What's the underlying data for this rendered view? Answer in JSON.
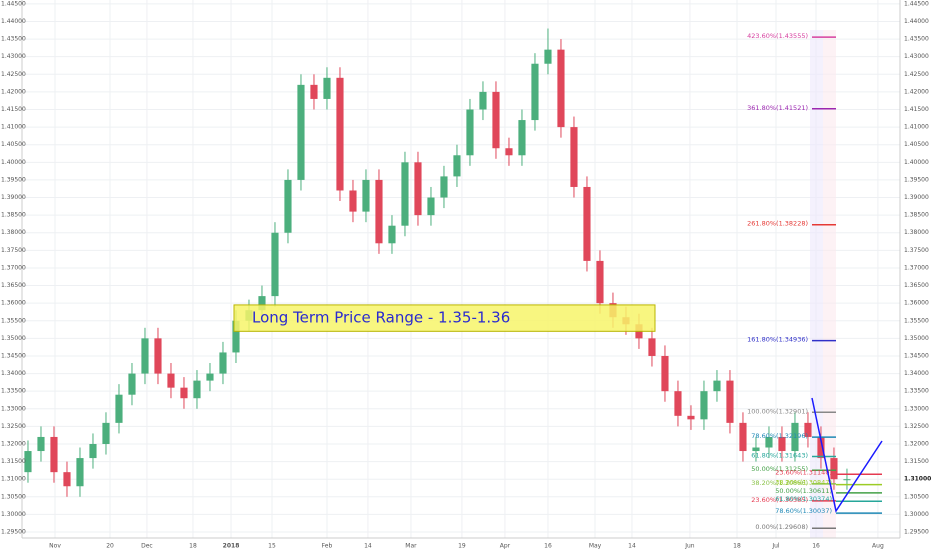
{
  "chart_data": {
    "type": "candlestick",
    "open": [
      1.312,
      1.318,
      1.322,
      1.312,
      1.308,
      1.316,
      1.32,
      1.326,
      1.334,
      1.34,
      1.35,
      1.34,
      1.336,
      1.333,
      1.338,
      1.34,
      1.346,
      1.355,
      1.358,
      1.362,
      1.38,
      1.395,
      1.422,
      1.418,
      1.424,
      1.392,
      1.386,
      1.395,
      1.377,
      1.382,
      1.4,
      1.385,
      1.39,
      1.396,
      1.402,
      1.415,
      1.42,
      1.404,
      1.402,
      1.412,
      1.428,
      1.432,
      1.41,
      1.393,
      1.372,
      1.36,
      1.356,
      1.354,
      1.35,
      1.345,
      1.335,
      1.328,
      1.327,
      1.335,
      1.338,
      1.326,
      1.318,
      1.319,
      1.322,
      1.318,
      1.326,
      1.322,
      1.316,
      1.31
    ],
    "high": [
      1.321,
      1.325,
      1.325,
      1.315,
      1.319,
      1.323,
      1.329,
      1.337,
      1.343,
      1.353,
      1.353,
      1.343,
      1.339,
      1.341,
      1.343,
      1.349,
      1.358,
      1.361,
      1.365,
      1.383,
      1.398,
      1.425,
      1.425,
      1.427,
      1.427,
      1.395,
      1.398,
      1.398,
      1.385,
      1.403,
      1.403,
      1.393,
      1.399,
      1.405,
      1.418,
      1.423,
      1.423,
      1.407,
      1.415,
      1.431,
      1.438,
      1.435,
      1.413,
      1.396,
      1.375,
      1.363,
      1.359,
      1.357,
      1.353,
      1.348,
      1.338,
      1.331,
      1.338,
      1.341,
      1.341,
      1.329,
      1.322,
      1.325,
      1.325,
      1.329,
      1.329,
      1.325,
      1.319,
      1.313
    ],
    "low": [
      1.309,
      1.315,
      1.309,
      1.305,
      1.305,
      1.313,
      1.317,
      1.323,
      1.331,
      1.337,
      1.337,
      1.333,
      1.33,
      1.33,
      1.335,
      1.337,
      1.343,
      1.352,
      1.355,
      1.359,
      1.377,
      1.392,
      1.415,
      1.415,
      1.389,
      1.383,
      1.383,
      1.374,
      1.374,
      1.379,
      1.382,
      1.382,
      1.387,
      1.393,
      1.399,
      1.412,
      1.401,
      1.399,
      1.399,
      1.409,
      1.425,
      1.407,
      1.39,
      1.369,
      1.357,
      1.353,
      1.351,
      1.347,
      1.342,
      1.332,
      1.325,
      1.324,
      1.324,
      1.332,
      1.323,
      1.315,
      1.315,
      1.316,
      1.315,
      1.315,
      1.319,
      1.313,
      1.307,
      1.307
    ],
    "close": [
      1.318,
      1.322,
      1.312,
      1.308,
      1.316,
      1.32,
      1.326,
      1.334,
      1.34,
      1.35,
      1.34,
      1.336,
      1.333,
      1.338,
      1.34,
      1.346,
      1.355,
      1.358,
      1.362,
      1.38,
      1.395,
      1.422,
      1.418,
      1.424,
      1.392,
      1.386,
      1.395,
      1.377,
      1.382,
      1.4,
      1.385,
      1.39,
      1.396,
      1.402,
      1.415,
      1.42,
      1.404,
      1.402,
      1.412,
      1.428,
      1.432,
      1.41,
      1.393,
      1.372,
      1.36,
      1.356,
      1.354,
      1.35,
      1.345,
      1.335,
      1.328,
      1.327,
      1.335,
      1.338,
      1.326,
      1.318,
      1.319,
      1.322,
      1.318,
      1.326,
      1.322,
      1.316,
      1.31,
      1.31
    ],
    "up_color": "#4caf7d",
    "down_color": "#e0475a",
    "xlim": [
      -0.46,
      67.08
    ],
    "xticks": [
      {
        "value": 2.08,
        "label": "Nov"
      },
      {
        "value": 6.31,
        "label": "20"
      },
      {
        "value": 9.15,
        "label": "Dec"
      },
      {
        "value": 12.69,
        "label": "18"
      },
      {
        "value": 15.62,
        "label": "2018"
      },
      {
        "value": 18.77,
        "label": "15"
      },
      {
        "value": 23,
        "label": "Feb"
      },
      {
        "value": 26.15,
        "label": "14"
      },
      {
        "value": 29.46,
        "label": "Mar"
      },
      {
        "value": 33.38,
        "label": "19"
      },
      {
        "value": 36.69,
        "label": "Apr"
      },
      {
        "value": 40,
        "label": "16"
      },
      {
        "value": 43.62,
        "label": "May"
      },
      {
        "value": 46.46,
        "label": "14"
      },
      {
        "value": 50.92,
        "label": "Jun"
      },
      {
        "value": 54.54,
        "label": "18"
      },
      {
        "value": 57.54,
        "label": "Jul"
      },
      {
        "value": 60.62,
        "label": "16"
      },
      {
        "value": 65.38,
        "label": "Aug"
      }
    ],
    "ylim": [
      1.2933,
      1.4461
    ],
    "yticks": [
      {
        "value": 1.295,
        "label": "1.29500"
      },
      {
        "value": 1.3,
        "label": "1.30000"
      },
      {
        "value": 1.305,
        "label": "1.30500"
      },
      {
        "value": 1.31,
        "label": "1.31000"
      },
      {
        "value": 1.315,
        "label": "1.31500"
      },
      {
        "value": 1.32,
        "label": "1.32000"
      },
      {
        "value": 1.325,
        "label": "1.32500"
      },
      {
        "value": 1.33,
        "label": "1.33000"
      },
      {
        "value": 1.335,
        "label": "1.33500"
      },
      {
        "value": 1.34,
        "label": "1.34000"
      },
      {
        "value": 1.345,
        "label": "1.34500"
      },
      {
        "value": 1.35,
        "label": "1.35000"
      },
      {
        "value": 1.355,
        "label": "1.35500"
      },
      {
        "value": 1.36,
        "label": "1.36000"
      },
      {
        "value": 1.365,
        "label": "1.36500"
      },
      {
        "value": 1.37,
        "label": "1.37000"
      },
      {
        "value": 1.375,
        "label": "1.37500"
      },
      {
        "value": 1.38,
        "label": "1.38000"
      },
      {
        "value": 1.385,
        "label": "1.38500"
      },
      {
        "value": 1.39,
        "label": "1.39000"
      },
      {
        "value": 1.395,
        "label": "1.39500"
      },
      {
        "value": 1.4,
        "label": "1.40000"
      },
      {
        "value": 1.405,
        "label": "1.40500"
      },
      {
        "value": 1.41,
        "label": "1.41000"
      },
      {
        "value": 1.415,
        "label": "1.41500"
      },
      {
        "value": 1.42,
        "label": "1.42000"
      },
      {
        "value": 1.425,
        "label": "1.42500"
      },
      {
        "value": 1.43,
        "label": "1.43000"
      },
      {
        "value": 1.435,
        "label": "1.43500"
      },
      {
        "value": 1.44,
        "label": "1.44000"
      },
      {
        "value": 1.445,
        "label": "1.44500"
      }
    ],
    "grid": true,
    "annotation": {
      "text": "Long Term Price Range - 1.35-1.36",
      "range": [
        1.352,
        1.3595
      ]
    },
    "fib_extension": [
      {
        "label": "423.60%(1.43555)",
        "value": 1.43555,
        "color": "#d6409f"
      },
      {
        "label": "361.80%(1.41521)",
        "value": 1.41521,
        "color": "#9c27b0"
      },
      {
        "label": "261.80%(1.38228)",
        "value": 1.38228,
        "color": "#e53935"
      },
      {
        "label": "161.80%(1.34936)",
        "value": 1.34936,
        "color": "#3030c8"
      },
      {
        "label": "100.00%(1.32901)",
        "value": 1.32901,
        "color": "#888888"
      },
      {
        "label": "78.60%(1.32196)",
        "value": 1.32196,
        "color": "#1e88b5"
      },
      {
        "label": "61.80%(1.31643)",
        "value": 1.31643,
        "color": "#26a69a"
      },
      {
        "label": "50.00%(1.31255)",
        "value": 1.31255,
        "color": "#43a047"
      },
      {
        "label": "38.20%(1.30866)",
        "value": 1.30866,
        "color": "#8bc34a"
      },
      {
        "label": "23.60%(1.30385)",
        "value": 1.30385,
        "color": "#e53950"
      },
      {
        "label": "0.00%(1.29608)",
        "value": 1.29608,
        "color": "#777777"
      }
    ],
    "fib_retracement": [
      {
        "label": "23.60%(1.31140)",
        "value": 1.3114,
        "color": "#e53950"
      },
      {
        "label": "38.20%(1.30847)",
        "value": 1.30847,
        "color": "#9ccc25"
      },
      {
        "label": "50.00%(1.30611)",
        "value": 1.30611,
        "color": "#43a047"
      },
      {
        "label": "61.80%(1.30374)",
        "value": 1.30374,
        "color": "#26a69a"
      },
      {
        "label": "78.60%(1.30037)",
        "value": 1.30037,
        "color": "#1e88b5"
      }
    ]
  }
}
